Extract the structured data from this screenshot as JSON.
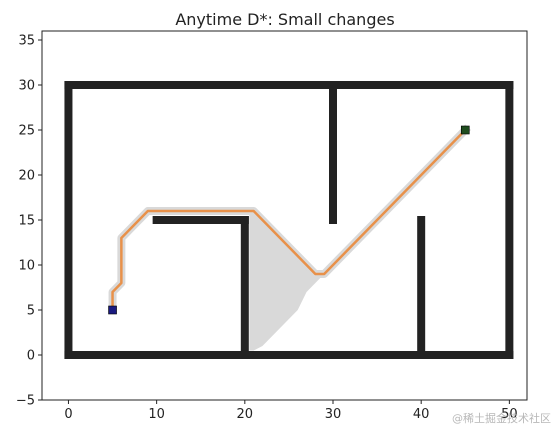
{
  "chart_data": {
    "type": "scatter",
    "title": "Anytime D*: Small changes",
    "xlabel": "",
    "ylabel": "",
    "xlim": [
      -3,
      52
    ],
    "ylim": [
      -5,
      36
    ],
    "xticks": [
      0,
      10,
      20,
      30,
      40,
      50
    ],
    "yticks": [
      -5,
      0,
      5,
      10,
      15,
      20,
      25,
      30,
      35
    ],
    "grid": false,
    "colors": {
      "obstacle": "#222222",
      "explored": "#d9d9d9",
      "path": "#e8914a",
      "start": "#1a1a80",
      "goal": "#1f4d1f"
    },
    "obstacle_lines": [
      {
        "x": [
          0,
          50
        ],
        "y": [
          0,
          0
        ]
      },
      {
        "x": [
          0,
          50
        ],
        "y": [
          30,
          30
        ]
      },
      {
        "x": [
          0,
          0
        ],
        "y": [
          0,
          30
        ]
      },
      {
        "x": [
          50,
          50
        ],
        "y": [
          0,
          30
        ]
      },
      {
        "x": [
          30,
          30
        ],
        "y": [
          15,
          30
        ]
      },
      {
        "x": [
          10,
          20
        ],
        "y": [
          15,
          15
        ]
      },
      {
        "x": [
          20,
          20
        ],
        "y": [
          0,
          15
        ]
      },
      {
        "x": [
          40,
          40
        ],
        "y": [
          0,
          15
        ]
      }
    ],
    "explored_region": {
      "x": [
        20.5,
        21,
        22,
        23,
        24,
        25,
        26,
        27,
        28,
        29,
        28,
        27,
        26,
        25,
        24,
        23,
        22,
        21,
        20.5
      ],
      "y": [
        16,
        16,
        15,
        14,
        13,
        12,
        11,
        10,
        9,
        9,
        8,
        7,
        5,
        4,
        3,
        2,
        1,
        0.5,
        0.5
      ]
    },
    "series": [
      {
        "type": "line",
        "x": [
          5,
          5,
          6,
          6,
          7,
          8,
          9,
          21,
          22,
          23,
          24,
          25,
          26,
          27,
          28,
          29,
          30,
          31,
          32,
          33,
          34,
          35,
          36,
          37,
          38,
          39,
          40,
          41,
          42,
          43,
          44,
          45
        ],
        "y": [
          5,
          7,
          8,
          13,
          14,
          15,
          16,
          16,
          15,
          14,
          13,
          12,
          11,
          10,
          9,
          9,
          10,
          11,
          12,
          13,
          14,
          15,
          16,
          17,
          18,
          19,
          20,
          21,
          22,
          23,
          24,
          25
        ]
      }
    ],
    "start": {
      "x": 5,
      "y": 5
    },
    "goal": {
      "x": 45,
      "y": 25
    }
  },
  "watermark": "@稀土掘金技术社区"
}
